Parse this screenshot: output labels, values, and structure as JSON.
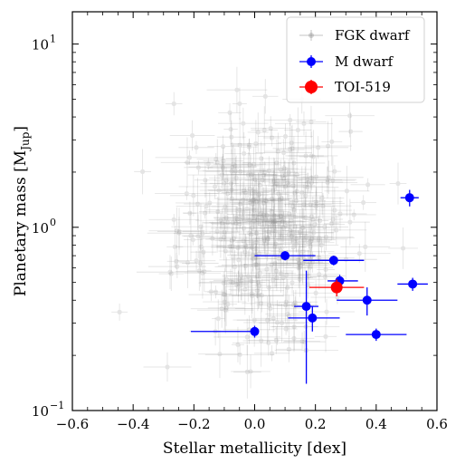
{
  "chart_data": {
    "type": "scatter",
    "xlabel": "Stellar metallicity [dex]",
    "ylabel": "Planetary mass [M",
    "ylabel_sub": "Jup",
    "ylabel_close": "]",
    "xlim": [
      -0.6,
      0.6
    ],
    "ylim": [
      0.1,
      15
    ],
    "yscale": "log",
    "x_ticks": [
      -0.6,
      -0.4,
      -0.2,
      0.0,
      0.2,
      0.4,
      0.6
    ],
    "x_tick_labels": [
      "−0.6",
      "−0.4",
      "−0.2",
      "0.0",
      "0.2",
      "0.4",
      "0.6"
    ],
    "y_ticks": [
      0.1,
      1,
      10
    ],
    "y_tick_bases": [
      "10",
      "10",
      "10"
    ],
    "y_tick_exps": [
      "−1",
      "0",
      "1"
    ],
    "legend": {
      "position": "top-right",
      "entries": [
        "FGK dwarf",
        "M dwarf",
        "TOI-519"
      ]
    },
    "colors": {
      "fgk": "#888888",
      "m_dwarf": "#0000ff",
      "toi": "#ff0000"
    },
    "series": [
      {
        "name": "M dwarf",
        "points": [
          {
            "x": 0.0,
            "y": 0.27,
            "xerr": [
              0.21,
              0.0
            ],
            "yerr": [
              0.02,
              0.02
            ]
          },
          {
            "x": 0.1,
            "y": 0.7,
            "xerr": [
              0.1,
              0.1
            ],
            "yerr": [
              0.04,
              0.04
            ]
          },
          {
            "x": 0.17,
            "y": 0.37,
            "xerr": [
              0.04,
              0.04
            ],
            "yerr": [
              0.23,
              0.21
            ]
          },
          {
            "x": 0.19,
            "y": 0.32,
            "xerr": [
              0.08,
              0.09
            ],
            "yerr": [
              0.05,
              0.05
            ]
          },
          {
            "x": 0.26,
            "y": 0.66,
            "xerr": [
              0.1,
              0.1
            ],
            "yerr": [
              0.04,
              0.04
            ]
          },
          {
            "x": 0.28,
            "y": 0.51,
            "xerr": [
              0.04,
              0.06
            ],
            "yerr": [
              0.04,
              0.04
            ]
          },
          {
            "x": 0.37,
            "y": 0.4,
            "xerr": [
              0.1,
              0.1
            ],
            "yerr": [
              0.07,
              0.07
            ]
          },
          {
            "x": 0.4,
            "y": 0.26,
            "xerr": [
              0.1,
              0.1
            ],
            "yerr": [
              0.02,
              0.02
            ]
          },
          {
            "x": 0.51,
            "y": 1.45,
            "xerr": [
              0.03,
              0.03
            ],
            "yerr": [
              0.15,
              0.15
            ]
          },
          {
            "x": 0.52,
            "y": 0.49,
            "xerr": [
              0.05,
              0.05
            ],
            "yerr": [
              0.04,
              0.04
            ]
          }
        ]
      },
      {
        "name": "TOI-519",
        "points": [
          {
            "x": 0.27,
            "y": 0.47,
            "xerr": [
              0.09,
              0.09
            ],
            "yerr": [
              0.05,
              0.05
            ]
          }
        ]
      }
    ],
    "fgk_cloud_size": 420
  }
}
